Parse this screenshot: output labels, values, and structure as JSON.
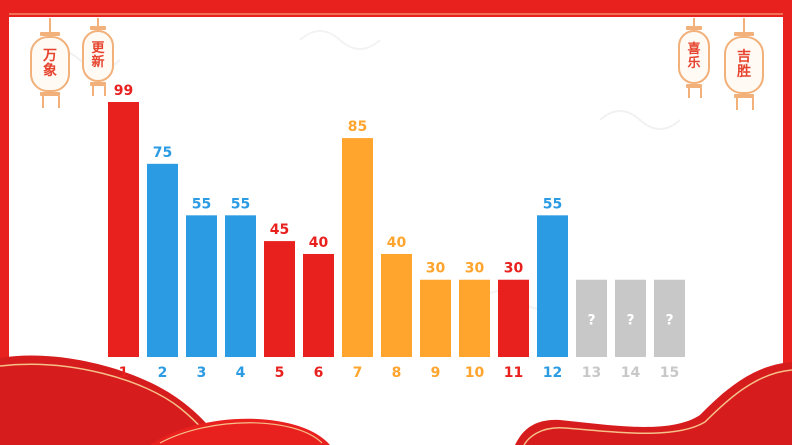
{
  "decor": {
    "lanterns_left": [
      "万象",
      "更新"
    ],
    "lanterns_right": [
      "喜乐",
      "吉胜"
    ],
    "colors": {
      "frame": "#e8211f",
      "gold": "#f2b07a",
      "wave": "#d61c1c"
    }
  },
  "chart_data": {
    "type": "bar",
    "title": "",
    "xlabel": "",
    "ylabel": "",
    "ylim": [
      0,
      100
    ],
    "grid": false,
    "categories": [
      "1",
      "2",
      "3",
      "4",
      "5",
      "6",
      "7",
      "8",
      "9",
      "10",
      "11",
      "12",
      "13",
      "14",
      "15"
    ],
    "values": [
      99,
      75,
      55,
      55,
      45,
      40,
      85,
      40,
      30,
      30,
      30,
      55,
      null,
      null,
      null
    ],
    "data_labels": [
      "99",
      "75",
      "55",
      "55",
      "45",
      "40",
      "85",
      "40",
      "30",
      "30",
      "30",
      "55",
      "?",
      "?",
      "?"
    ],
    "colors": [
      "#e8211f",
      "#2b9be3",
      "#2b9be3",
      "#2b9be3",
      "#e8211f",
      "#e8211f",
      "#ffa52e",
      "#ffa52e",
      "#ffa52e",
      "#ffa52e",
      "#e8211f",
      "#2b9be3",
      "#c8c8c8",
      "#c8c8c8",
      "#c8c8c8"
    ],
    "label_colors": [
      "#e8211f",
      "#2b9be3",
      "#2b9be3",
      "#2b9be3",
      "#e8211f",
      "#e8211f",
      "#ffa52e",
      "#ffa52e",
      "#ffa52e",
      "#ffa52e",
      "#e8211f",
      "#2b9be3",
      "#c8c8c8",
      "#c8c8c8",
      "#c8c8c8"
    ],
    "unknown_value_placeholder": 30
  }
}
